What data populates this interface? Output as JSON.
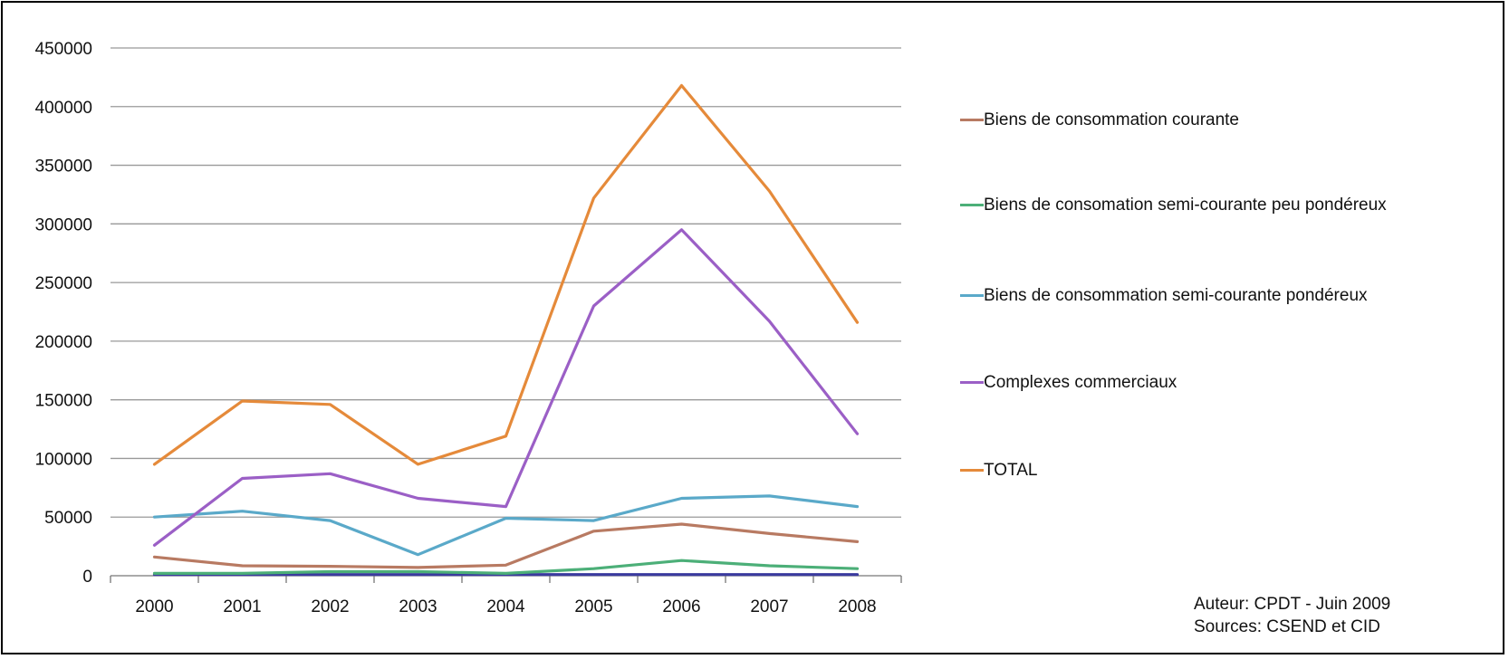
{
  "chart_data": {
    "type": "line",
    "title": "",
    "xlabel": "",
    "ylabel": "",
    "categories": [
      "2000",
      "2001",
      "2002",
      "2003",
      "2004",
      "2005",
      "2006",
      "2007",
      "2008"
    ],
    "ylim": [
      0,
      450000
    ],
    "yticks": [
      "0",
      "50000",
      "100000",
      "150000",
      "200000",
      "250000",
      "300000",
      "350000",
      "400000",
      "450000"
    ],
    "grid": true,
    "legend_position": "right",
    "series": [
      {
        "name": "Biens de consommation courante",
        "color": "#b87a62",
        "values": [
          16000,
          8500,
          8000,
          7000,
          9000,
          38000,
          44000,
          36000,
          29000
        ]
      },
      {
        "name": "Biens de consomation semi-courante peu pondéreux",
        "color": "#4caf78",
        "values": [
          2000,
          2000,
          3500,
          3500,
          2000,
          6000,
          13000,
          8500,
          6000
        ]
      },
      {
        "name": "Biens de consommation semi-courante pondéreux",
        "color": "#5aa9c9",
        "values": [
          50000,
          55000,
          47000,
          18000,
          49000,
          47000,
          66000,
          68000,
          59000
        ]
      },
      {
        "name": "Complexes commerciaux",
        "color": "#9b5fc6",
        "values": [
          26000,
          83000,
          87000,
          66000,
          59000,
          230000,
          295000,
          217000,
          121000
        ]
      },
      {
        "name": "TOTAL",
        "color": "#e58a3a",
        "values": [
          95000,
          149000,
          146000,
          95000,
          119000,
          322000,
          418000,
          328000,
          216000
        ]
      }
    ],
    "extra_series": [
      {
        "color": "#3a3a9e",
        "values": [
          1000,
          1000,
          1000,
          1000,
          1000,
          1000,
          1000,
          1000,
          1000
        ]
      }
    ]
  },
  "credits": {
    "author": "Auteur: CPDT - Juin 2009",
    "sources": "Sources: CSEND et CID"
  }
}
